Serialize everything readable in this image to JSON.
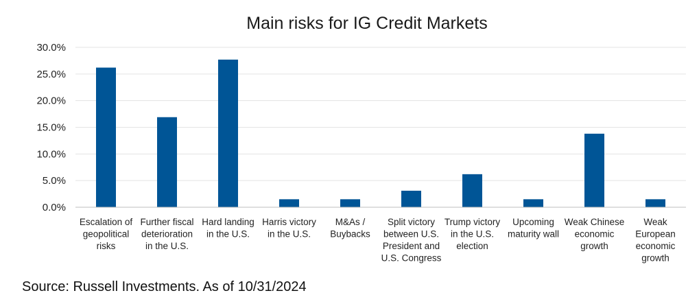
{
  "chart_data": {
    "type": "bar",
    "title": "Main risks for IG Credit Markets",
    "xlabel": "",
    "ylabel": "",
    "ylim": [
      0,
      30
    ],
    "y_ticks": [
      "0.0%",
      "5.0%",
      "10.0%",
      "15.0%",
      "20.0%",
      "25.0%",
      "30.0%"
    ],
    "grid": true,
    "bar_color": "#005596",
    "categories": [
      [
        "Escalation of",
        "geopolitical",
        "risks"
      ],
      [
        "Further fiscal",
        "deterioration",
        "in the U.S."
      ],
      [
        "Hard landing",
        "in the U.S."
      ],
      [
        "Harris victory",
        "in the U.S."
      ],
      [
        "M&As /",
        "Buybacks"
      ],
      [
        "Split victory",
        "between U.S.",
        "President and",
        "U.S. Congress"
      ],
      [
        "Trump victory",
        "in the U.S.",
        "election"
      ],
      [
        "Upcoming",
        "maturity wall"
      ],
      [
        "Weak Chinese",
        "economic",
        "growth"
      ],
      [
        "Weak",
        "European",
        "economic",
        "growth"
      ]
    ],
    "values": [
      26.2,
      16.9,
      27.7,
      1.5,
      1.5,
      3.1,
      6.2,
      1.5,
      13.8,
      1.5
    ]
  },
  "source": "Source: Russell Investments. As of 10/31/2024"
}
